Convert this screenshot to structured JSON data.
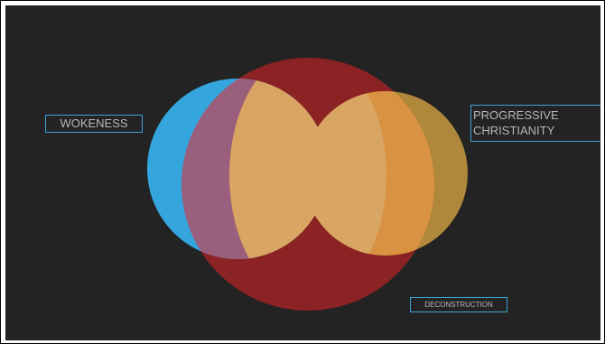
{
  "diagram": {
    "type": "venn",
    "sets": [
      {
        "key": "wokeness",
        "label": "WOKENESS",
        "color": "#35a6dd"
      },
      {
        "key": "progressive",
        "label_lines": [
          "PROGRESSIVE",
          "CHRISTIANITY"
        ],
        "color": "#d59a3d"
      },
      {
        "key": "deconstruction",
        "label": "DECONSTRUCTION",
        "color": "#8b2223"
      }
    ],
    "colors": {
      "background": "#232323",
      "label_border": "#3aa3d8",
      "label_text": "#b7b7b7",
      "overlap_purple": "#9a5f7c",
      "overlap_core": "#d9a562"
    }
  }
}
